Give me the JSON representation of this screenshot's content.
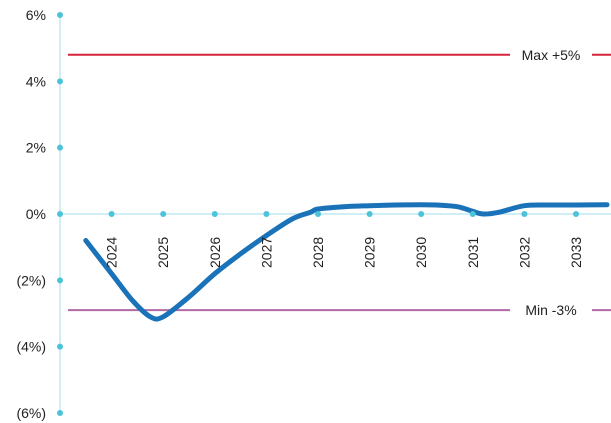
{
  "chart_data": {
    "type": "line",
    "x": [
      2023.5,
      2024,
      2024.4,
      2024.75,
      2025,
      2025.5,
      2026,
      2026.5,
      2027,
      2027.5,
      2027.85,
      2028,
      2028.5,
      2029,
      2029.5,
      2030,
      2030.3,
      2030.7,
      2031,
      2031.2,
      2031.5,
      2032,
      2032.5,
      2033,
      2033.6
    ],
    "x_tick_labels": [
      "2024",
      "2025",
      "2026",
      "2027",
      "2028",
      "2029",
      "2030",
      "2031",
      "2032",
      "2033"
    ],
    "x_ticks": [
      2024,
      2025,
      2026,
      2027,
      2028,
      2029,
      2030,
      2031,
      2032,
      2033
    ],
    "xlim": [
      2023,
      2033.6
    ],
    "series": [
      {
        "values": [
          -0.8,
          -1.8,
          -2.6,
          -3.1,
          -3.1,
          -2.5,
          -1.8,
          -1.2,
          -0.65,
          -0.15,
          0.05,
          0.15,
          0.22,
          0.25,
          0.27,
          0.28,
          0.27,
          0.22,
          0.08,
          0.0,
          0.05,
          0.25,
          0.27,
          0.27,
          0.28
        ],
        "color": "#1a72b8"
      }
    ],
    "y_ticks": [
      6,
      4,
      2,
      0,
      -2,
      -4,
      -6
    ],
    "y_tick_labels": [
      "6%",
      "4%",
      "2%",
      "0%",
      "(2%)",
      "(4%)",
      "(6%)"
    ],
    "ylim": [
      -6,
      6
    ],
    "reference_lines": [
      {
        "label": "Max +5%",
        "value": 4.8,
        "color": "#d6243c"
      },
      {
        "label": "Min -3%",
        "value": -2.9,
        "color": "#b16aa6"
      }
    ],
    "axis_color": "#cfeef5",
    "marker_color": "#4cc3d9",
    "title": "",
    "xlabel": "",
    "ylabel": "",
    "grid": false,
    "legend": "none"
  }
}
